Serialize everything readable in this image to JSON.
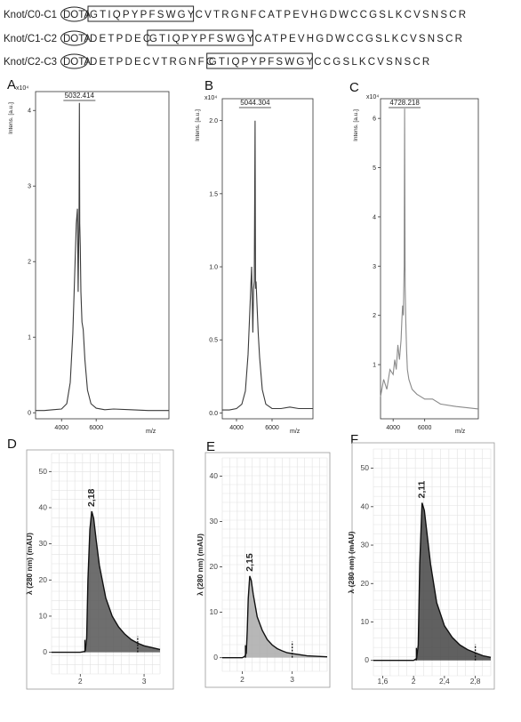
{
  "sequences": [
    {
      "name": "Knot/C0-C1",
      "tag": "DOTA",
      "boxed": "GTIQPYPFSWGY",
      "post": "CVTRGNFCATPEVHGDWCCGSLKCVSNSCR"
    },
    {
      "name": "Knot/C1-C2",
      "tag": "DOTA",
      "pre": "DETPDEC",
      "boxed": "GTIQPYPFSWGY",
      "post": "CATPEVHGDWCCGSLKCVSNSCR"
    },
    {
      "name": "Knot/C2-C3",
      "tag": "DOTA",
      "pre": "DETPDECVTRGNFC",
      "boxed": "GTIQPYPFSWGY",
      "post": "CCGSLKCVSNSCR"
    }
  ],
  "chart_data": [
    {
      "panel": "A",
      "type": "line",
      "title": "",
      "xlabel": "m/z",
      "ylabel": "Intens. [a.u.]",
      "y_multiplier": "x10⁴",
      "xlim": [
        2500,
        10200
      ],
      "ylim": [
        -0.08,
        4.25
      ],
      "xticks": [
        4000,
        6000
      ],
      "xtick_labels": [
        "4000",
        "6000"
      ],
      "yticks": [
        0,
        1,
        2,
        3,
        4
      ],
      "ytick_labels": [
        "0",
        "1",
        "2",
        "3",
        "4"
      ],
      "peak_label": "5032.414",
      "x": [
        2500,
        3000,
        3500,
        4000,
        4300,
        4500,
        4650,
        4750,
        4850,
        4920,
        4960,
        4990,
        5010,
        5032,
        5050,
        5080,
        5120,
        5180,
        5250,
        5350,
        5500,
        5700,
        6000,
        6500,
        7000,
        8000,
        9000,
        10200
      ],
      "y": [
        0.03,
        0.03,
        0.04,
        0.05,
        0.12,
        0.4,
        1.05,
        1.75,
        2.5,
        2.7,
        1.6,
        2.2,
        2.55,
        4.1,
        2.5,
        2.2,
        1.6,
        1.2,
        1.1,
        0.7,
        0.3,
        0.12,
        0.06,
        0.04,
        0.05,
        0.04,
        0.03,
        0.03
      ],
      "color": "#3a3a3a"
    },
    {
      "panel": "B",
      "type": "line",
      "title": "",
      "xlabel": "m/z",
      "ylabel": "Intens. [a.u.]",
      "y_multiplier": "x10⁴",
      "xlim": [
        3200,
        8300
      ],
      "ylim": [
        -0.04,
        2.15
      ],
      "xticks": [
        4000,
        6000
      ],
      "xtick_labels": [
        "4000",
        "6000"
      ],
      "yticks": [
        0,
        0.5,
        1.0,
        1.5,
        2.0
      ],
      "ytick_labels": [
        "0.0",
        "0.5",
        "1.0",
        "1.5",
        "2.0"
      ],
      "peak_label": "5044.304",
      "x": [
        3200,
        3600,
        4000,
        4300,
        4500,
        4650,
        4750,
        4850,
        4920,
        4960,
        5000,
        5044,
        5070,
        5100,
        5150,
        5220,
        5300,
        5450,
        5650,
        6000,
        6500,
        7000,
        7500,
        8300
      ],
      "y": [
        0.02,
        0.02,
        0.03,
        0.06,
        0.15,
        0.4,
        0.7,
        1.0,
        0.55,
        0.85,
        0.9,
        2.0,
        0.85,
        0.9,
        0.75,
        0.55,
        0.38,
        0.16,
        0.06,
        0.03,
        0.03,
        0.04,
        0.03,
        0.03
      ],
      "color": "#3a3a3a"
    },
    {
      "panel": "C",
      "type": "line",
      "title": "",
      "xlabel": "m/z",
      "ylabel": "Intens. [a.u.]",
      "y_multiplier": "x10⁴",
      "xlim": [
        3200,
        9400
      ],
      "ylim": [
        -0.1,
        6.4
      ],
      "xticks": [
        4000,
        6000
      ],
      "xtick_labels": [
        "4000",
        "6000"
      ],
      "yticks": [
        1,
        2,
        3,
        4,
        5,
        6
      ],
      "ytick_labels": [
        "1",
        "2",
        "3",
        "4",
        "5",
        "6"
      ],
      "peak_label": "4728.218",
      "x": [
        3200,
        3400,
        3600,
        3800,
        4000,
        4100,
        4200,
        4300,
        4400,
        4500,
        4550,
        4600,
        4650,
        4700,
        4728,
        4760,
        4800,
        4850,
        4900,
        5000,
        5200,
        5500,
        6000,
        6500,
        7000,
        8000,
        9400
      ],
      "y": [
        0.35,
        0.7,
        0.5,
        0.9,
        0.8,
        1.1,
        0.9,
        1.4,
        1.1,
        1.5,
        1.9,
        2.2,
        2.0,
        3.0,
        6.2,
        2.6,
        1.9,
        1.3,
        0.9,
        0.7,
        0.5,
        0.4,
        0.3,
        0.3,
        0.2,
        0.15,
        0.1
      ],
      "color": "#8a8a8a"
    },
    {
      "panel": "D",
      "type": "area",
      "title": "",
      "xlabel": "",
      "ylabel": "λ (280 nm) (mAU)",
      "xlim": [
        1.55,
        3.25
      ],
      "ylim": [
        -6,
        55
      ],
      "xticks": [
        2,
        3
      ],
      "xtick_labels": [
        "2",
        "3"
      ],
      "yticks": [
        0,
        10,
        20,
        30,
        40,
        50
      ],
      "ytick_labels": [
        "0",
        "10",
        "20",
        "30",
        "40",
        "50"
      ],
      "peak_label": "2,18",
      "x": [
        1.55,
        2.0,
        2.06,
        2.08,
        2.1,
        2.12,
        2.15,
        2.18,
        2.21,
        2.25,
        2.3,
        2.4,
        2.5,
        2.6,
        2.7,
        2.8,
        2.9,
        3.0,
        3.25
      ],
      "y": [
        0,
        0,
        0.2,
        0.5,
        4,
        20,
        34,
        39,
        37,
        31,
        24,
        15,
        10,
        7,
        5,
        3.5,
        2.5,
        1.8,
        0.8
      ],
      "color": "#555555"
    },
    {
      "panel": "E",
      "type": "area",
      "title": "",
      "xlabel": "",
      "ylabel": "λ (280 nm) (mAU)",
      "xlim": [
        1.6,
        3.7
      ],
      "ylim": [
        -3,
        44
      ],
      "xticks": [
        2,
        3
      ],
      "xtick_labels": [
        "2",
        "3"
      ],
      "yticks": [
        0,
        10,
        20,
        30,
        40
      ],
      "ytick_labels": [
        "0",
        "10",
        "20",
        "30",
        "40"
      ],
      "peak_label": "2,15",
      "x": [
        1.6,
        2.0,
        2.05,
        2.08,
        2.1,
        2.12,
        2.15,
        2.18,
        2.22,
        2.3,
        2.4,
        2.5,
        2.6,
        2.7,
        2.8,
        2.9,
        3.0,
        3.3,
        3.7
      ],
      "y": [
        0,
        0,
        0.3,
        1,
        6,
        13,
        18,
        17,
        14,
        9,
        6,
        4,
        2.8,
        2,
        1.5,
        1.1,
        0.9,
        0.4,
        0.2
      ],
      "color": "#aaaaaa"
    },
    {
      "panel": "F",
      "type": "area",
      "title": "",
      "xlabel": "",
      "ylabel": "λ (280 nm) (mAU)",
      "xlim": [
        1.48,
        3.0
      ],
      "ylim": [
        -4,
        55
      ],
      "xticks": [
        1.6,
        2,
        2.4,
        2.8
      ],
      "xtick_labels": [
        "1,6",
        "2",
        "2,4",
        "2,8"
      ],
      "yticks": [
        0,
        10,
        20,
        30,
        40,
        50
      ],
      "ytick_labels": [
        "0",
        "10",
        "20",
        "30",
        "40",
        "50"
      ],
      "peak_label": "2,11",
      "x": [
        1.48,
        2.0,
        2.04,
        2.06,
        2.08,
        2.11,
        2.14,
        2.18,
        2.22,
        2.3,
        2.4,
        2.5,
        2.6,
        2.7,
        2.8,
        2.9,
        3.0
      ],
      "y": [
        0,
        0,
        0.5,
        4,
        25,
        41,
        39,
        32,
        25,
        15,
        9,
        6,
        4,
        2.8,
        2,
        1.2,
        0.8
      ],
      "color": "#444444"
    }
  ]
}
